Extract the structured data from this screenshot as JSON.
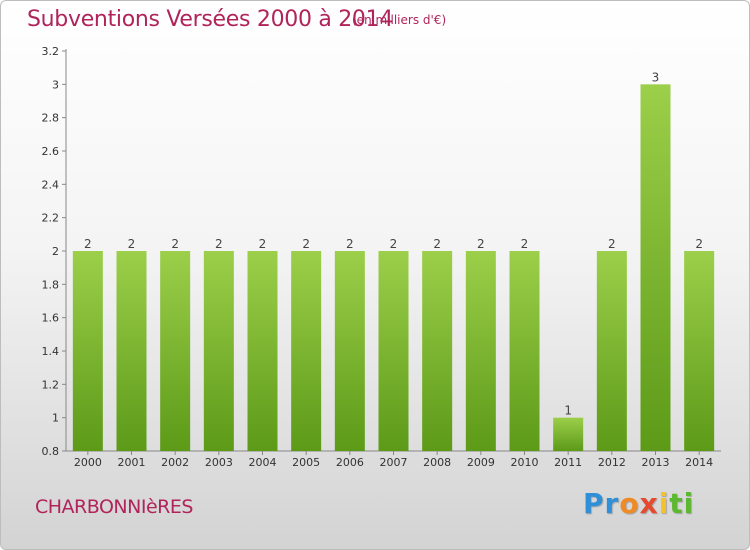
{
  "header": {
    "title": "Subventions Versées 2000 à 2014",
    "unit_note": "(en milliers d'€)"
  },
  "footer": {
    "commune": "CHARBONNIèRES",
    "logo_letters": [
      "Pr",
      "o",
      "x",
      "i",
      "ti"
    ]
  },
  "colors": {
    "bar_light": "#9ccf4a",
    "bar_dark": "#5c9a18",
    "title": "#b0245a"
  },
  "chart_data": {
    "type": "bar",
    "title": "Subventions Versées 2000 à 2014",
    "subtitle": "(en milliers d'€)",
    "xlabel": "",
    "ylabel": "",
    "categories": [
      "2000",
      "2001",
      "2002",
      "2003",
      "2004",
      "2005",
      "2006",
      "2007",
      "2008",
      "2009",
      "2010",
      "2011",
      "2012",
      "2013",
      "2014"
    ],
    "values": [
      2,
      2,
      2,
      2,
      2,
      2,
      2,
      2,
      2,
      2,
      2,
      1,
      2,
      3,
      2
    ],
    "data_labels": [
      "2",
      "2",
      "2",
      "2",
      "2",
      "2",
      "2",
      "2",
      "2",
      "2",
      "2",
      "1",
      "2",
      "3",
      "2"
    ],
    "ylim": [
      0.8,
      3.2
    ],
    "yticks": [
      0.8,
      1,
      1.2,
      1.4,
      1.6,
      1.8,
      2,
      2.2,
      2.4,
      2.6,
      2.8,
      3,
      3.2
    ],
    "ytick_labels": [
      "0.8",
      "1",
      "1.2",
      "1.4",
      "1.6",
      "1.8",
      "2",
      "2.2",
      "2.4",
      "2.6",
      "2.8",
      "3",
      "3.2"
    ],
    "grid": false,
    "legend": "none"
  }
}
